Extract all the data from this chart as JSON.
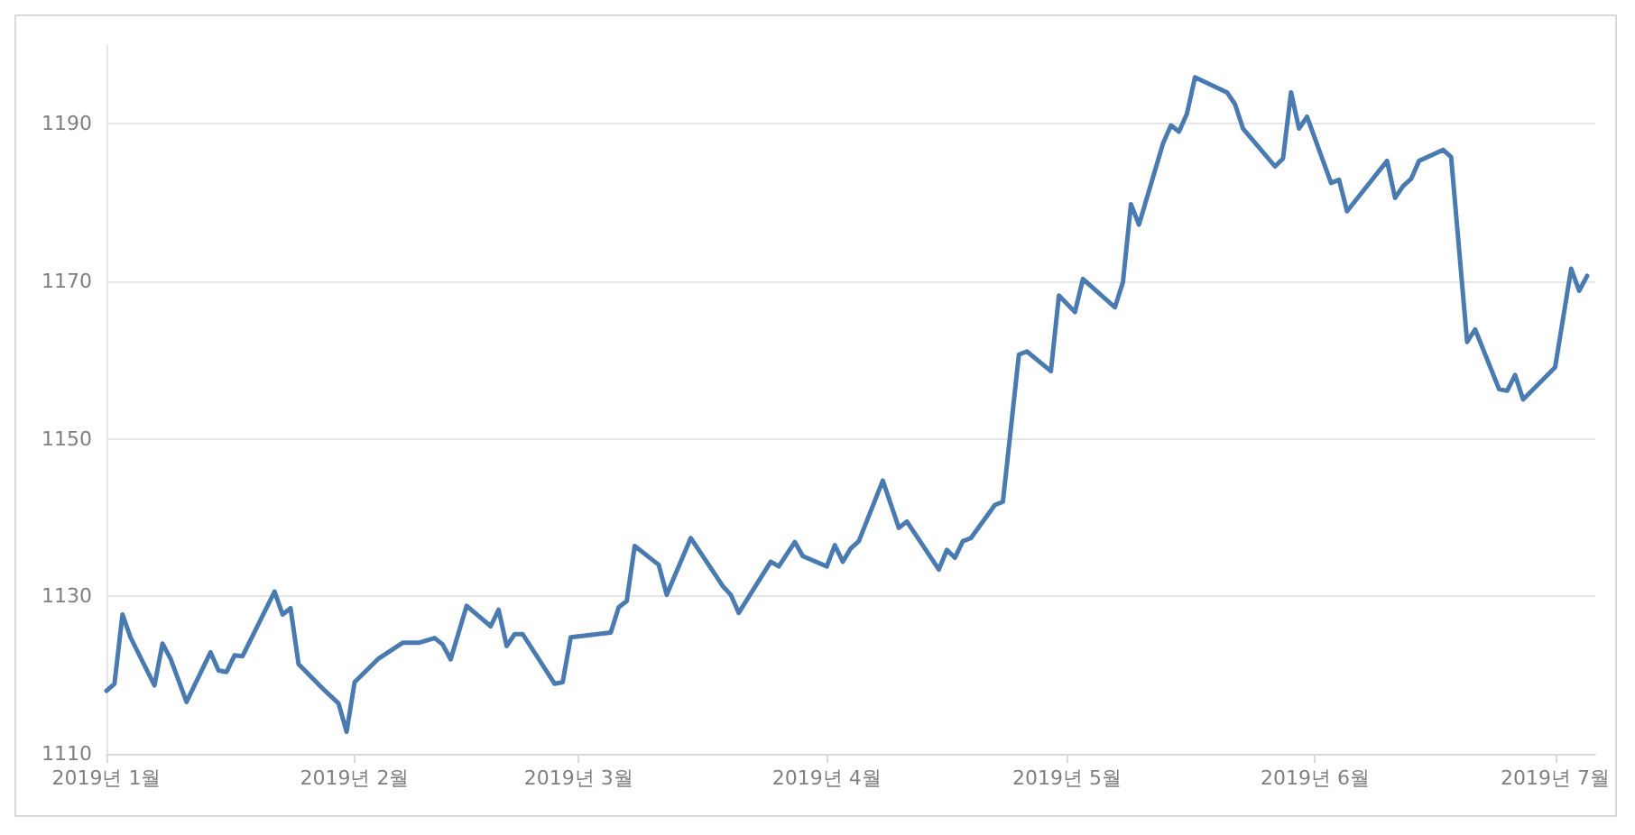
{
  "chart_data": {
    "type": "line",
    "x": [
      "2019-01-01",
      "2019-01-02",
      "2019-01-03",
      "2019-01-04",
      "2019-01-07",
      "2019-01-08",
      "2019-01-09",
      "2019-01-11",
      "2019-01-14",
      "2019-01-15",
      "2019-01-16",
      "2019-01-17",
      "2019-01-18",
      "2019-01-22",
      "2019-01-23",
      "2019-01-24",
      "2019-01-25",
      "2019-01-28",
      "2019-01-30",
      "2019-01-31",
      "2019-02-01",
      "2019-02-04",
      "2019-02-07",
      "2019-02-09",
      "2019-02-11",
      "2019-02-12",
      "2019-02-13",
      "2019-02-15",
      "2019-02-18",
      "2019-02-19",
      "2019-02-20",
      "2019-02-21",
      "2019-02-22",
      "2019-02-26",
      "2019-02-27",
      "2019-02-28",
      "2019-03-05",
      "2019-03-06",
      "2019-03-07",
      "2019-03-08",
      "2019-03-11",
      "2019-03-12",
      "2019-03-15",
      "2019-03-19",
      "2019-03-20",
      "2019-03-21",
      "2019-03-25",
      "2019-03-26",
      "2019-03-28",
      "2019-03-29",
      "2019-04-01",
      "2019-04-02",
      "2019-04-03",
      "2019-04-04",
      "2019-04-05",
      "2019-04-08",
      "2019-04-10",
      "2019-04-11",
      "2019-04-15",
      "2019-04-16",
      "2019-04-17",
      "2019-04-18",
      "2019-04-19",
      "2019-04-22",
      "2019-04-23",
      "2019-04-25",
      "2019-04-26",
      "2019-04-29",
      "2019-04-30",
      "2019-05-02",
      "2019-05-03",
      "2019-05-07",
      "2019-05-08",
      "2019-05-09",
      "2019-05-10",
      "2019-05-13",
      "2019-05-14",
      "2019-05-15",
      "2019-05-16",
      "2019-05-17",
      "2019-05-21",
      "2019-05-22",
      "2019-05-23",
      "2019-05-24",
      "2019-05-27",
      "2019-05-28",
      "2019-05-29",
      "2019-05-30",
      "2019-05-31",
      "2019-06-03",
      "2019-06-04",
      "2019-06-05",
      "2019-06-10",
      "2019-06-11",
      "2019-06-12",
      "2019-06-13",
      "2019-06-14",
      "2019-06-17",
      "2019-06-18",
      "2019-06-20",
      "2019-06-21",
      "2019-06-24",
      "2019-06-25",
      "2019-06-26",
      "2019-06-27",
      "2019-07-01",
      "2019-07-03",
      "2019-07-04",
      "2019-07-05"
    ],
    "series": [
      {
        "color": "#4a7bb0",
        "values": [
          1118.0,
          1118.9,
          1127.7,
          1124.8,
          1118.7,
          1124.0,
          1122.1,
          1116.6,
          1122.9,
          1120.6,
          1120.4,
          1122.5,
          1122.4,
          1130.6,
          1127.7,
          1128.5,
          1121.4,
          1118.3,
          1116.4,
          1112.8,
          1119.1,
          1122.1,
          1124.1,
          1124.1,
          1124.7,
          1123.9,
          1122.0,
          1128.8,
          1126.2,
          1128.3,
          1123.7,
          1125.2,
          1125.2,
          1118.9,
          1119.1,
          1124.8,
          1125.4,
          1128.6,
          1129.4,
          1136.4,
          1134.0,
          1130.2,
          1137.4,
          1131.3,
          1130.2,
          1127.9,
          1134.4,
          1133.8,
          1136.9,
          1135.1,
          1133.8,
          1136.5,
          1134.4,
          1136.1,
          1137.0,
          1144.7,
          1138.7,
          1139.5,
          1133.4,
          1135.9,
          1134.9,
          1137.0,
          1137.4,
          1141.6,
          1142.0,
          1160.7,
          1161.1,
          1158.6,
          1168.2,
          1166.1,
          1170.3,
          1166.7,
          1169.9,
          1179.8,
          1177.2,
          1187.5,
          1189.8,
          1189.0,
          1191.3,
          1195.9,
          1194.0,
          1192.5,
          1189.4,
          1188.2,
          1184.6,
          1185.6,
          1194.0,
          1189.4,
          1190.9,
          1182.5,
          1182.9,
          1178.9,
          1185.3,
          1180.6,
          1182.1,
          1183.0,
          1185.3,
          1186.7,
          1185.8,
          1162.3,
          1163.9,
          1156.3,
          1156.1,
          1158.1,
          1155.0,
          1159.1,
          1171.6,
          1168.8,
          1170.7
        ]
      }
    ],
    "xlim": [
      "2019-01-01",
      "2019-07-06"
    ],
    "xticks": [
      {
        "value": "2019-01-01",
        "label": "2019년 1월"
      },
      {
        "value": "2019-02-01",
        "label": "2019년 2월"
      },
      {
        "value": "2019-03-01",
        "label": "2019년 3월"
      },
      {
        "value": "2019-04-01",
        "label": "2019년 4월"
      },
      {
        "value": "2019-05-01",
        "label": "2019년 5월"
      },
      {
        "value": "2019-06-01",
        "label": "2019년 6월"
      },
      {
        "value": "2019-07-01",
        "label": "2019년 7월"
      }
    ],
    "ylim": [
      1110,
      1200
    ],
    "yticks": [
      1110,
      1130,
      1150,
      1170,
      1190
    ],
    "grid": "y",
    "marker": "none",
    "line_style": "solid"
  }
}
